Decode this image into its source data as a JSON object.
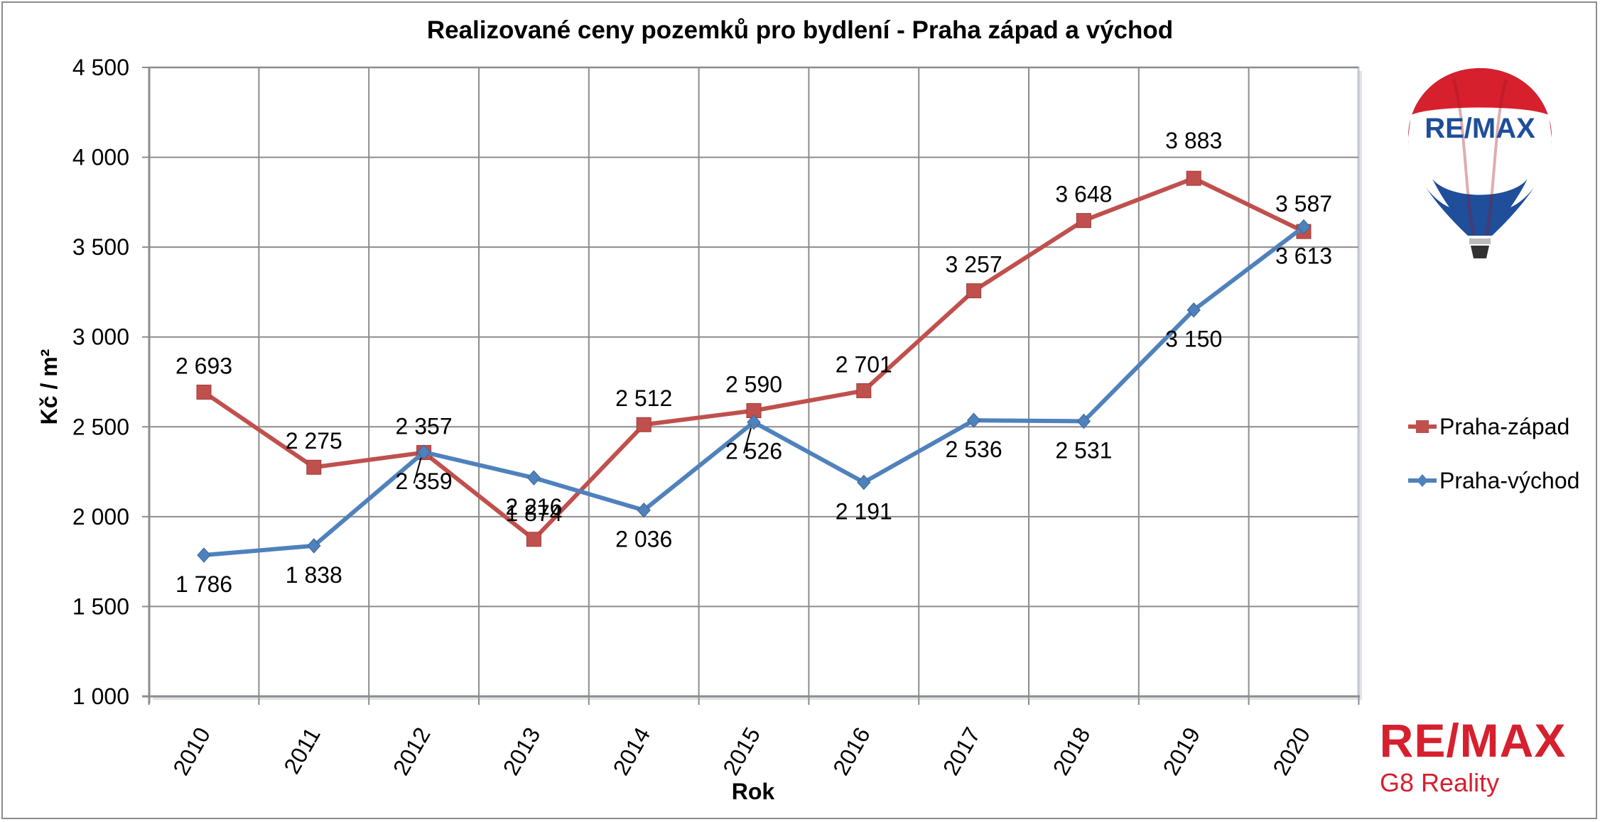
{
  "chart_data": {
    "type": "line",
    "title": "Realizované ceny pozemků pro bydlení  - Praha západ a východ",
    "xlabel": "Rok",
    "ylabel": "Kč / m²",
    "categories": [
      "2010",
      "2011",
      "2012",
      "2013",
      "2014",
      "2015",
      "2016",
      "2017",
      "2018",
      "2019",
      "2020"
    ],
    "ylim": [
      1000,
      4500
    ],
    "yticks": [
      1000,
      1500,
      2000,
      2500,
      3000,
      3500,
      4000,
      4500
    ],
    "ytick_labels": [
      "1 000",
      "1 500",
      "2 000",
      "2 500",
      "3 000",
      "3 500",
      "4 000",
      "4 500"
    ],
    "grid": true,
    "legend_position": "right",
    "series": [
      {
        "name": "Praha-západ",
        "color": "#c0504d",
        "marker": "square",
        "values": [
          2693,
          2275,
          2357,
          1874,
          2512,
          2590,
          2701,
          3257,
          3648,
          3883,
          3587
        ],
        "labels": [
          "2 693",
          "2 275",
          "2 357",
          "1 874",
          "2 512",
          "2 590",
          "2 701",
          "3 257",
          "3 648",
          "3 883",
          "3 587"
        ]
      },
      {
        "name": "Praha-východ",
        "color": "#4f81bd",
        "marker": "diamond",
        "values": [
          1786,
          1838,
          2359,
          2216,
          2036,
          2526,
          2191,
          2536,
          2531,
          3150,
          3613
        ],
        "labels": [
          "1 786",
          "1 838",
          "2 359",
          "2 216",
          "2 036",
          "2 526",
          "2 191",
          "2 536",
          "2 531",
          "3 150",
          "3 613"
        ]
      }
    ]
  },
  "logo": {
    "balloon_text": "RE/MAX",
    "brand_name": "RE/MAX",
    "brand_office": "G8 Reality",
    "brand_color": "#d6202e",
    "balloon_blue": "#1f4e9a"
  }
}
